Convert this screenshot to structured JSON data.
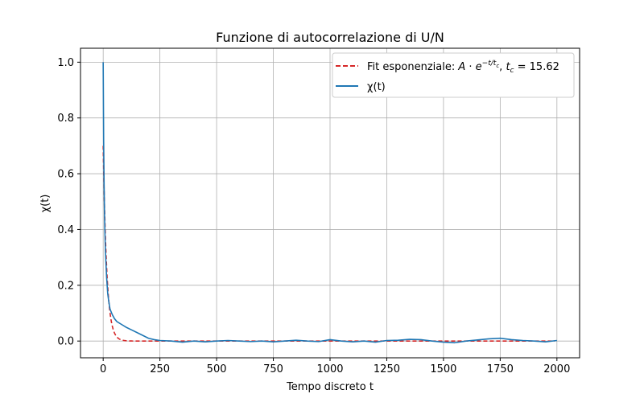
{
  "chart_data": {
    "type": "line",
    "title": "Funzione di autocorrelazione di U/N",
    "xlabel": "Tempo discreto t",
    "ylabel": "χ(t)",
    "xlim": [
      -100,
      2100
    ],
    "ylim": [
      -0.06,
      1.05
    ],
    "xticks": [
      0,
      250,
      500,
      750,
      1000,
      1250,
      1500,
      1750,
      2000
    ],
    "yticks": [
      0.0,
      0.2,
      0.4,
      0.6,
      0.8,
      1.0
    ],
    "xtick_labels": [
      "0",
      "250",
      "500",
      "750",
      "1000",
      "1250",
      "1500",
      "1750",
      "2000"
    ],
    "ytick_labels": [
      "0.0",
      "0.2",
      "0.4",
      "0.6",
      "0.8",
      "1.0"
    ],
    "grid": true,
    "legend_position": "top-right",
    "series": [
      {
        "name": "χ(t)",
        "color": "#1f77b4",
        "style": "solid",
        "x": [
          0,
          2,
          4,
          6,
          8,
          10,
          15,
          20,
          25,
          30,
          40,
          50,
          60,
          80,
          100,
          125,
          150,
          175,
          200,
          225,
          250,
          300,
          350,
          400,
          450,
          500,
          550,
          600,
          650,
          700,
          750,
          800,
          850,
          900,
          950,
          1000,
          1050,
          1100,
          1150,
          1200,
          1250,
          1300,
          1350,
          1400,
          1450,
          1500,
          1550,
          1600,
          1650,
          1700,
          1750,
          1800,
          1850,
          1900,
          1950,
          2000
        ],
        "y": [
          1.0,
          0.72,
          0.56,
          0.45,
          0.38,
          0.32,
          0.23,
          0.17,
          0.14,
          0.115,
          0.095,
          0.08,
          0.07,
          0.06,
          0.05,
          0.04,
          0.03,
          0.02,
          0.01,
          0.005,
          0.002,
          0.0,
          -0.004,
          0.0,
          -0.003,
          0.0,
          0.002,
          0.0,
          -0.002,
          0.0,
          -0.003,
          0.0,
          0.003,
          0.0,
          -0.002,
          0.005,
          0.0,
          -0.003,
          0.0,
          -0.004,
          0.002,
          0.003,
          0.006,
          0.005,
          0.0,
          -0.004,
          -0.006,
          0.0,
          0.004,
          0.008,
          0.01,
          0.005,
          0.002,
          0.0,
          -0.003,
          0.002
        ]
      },
      {
        "name": "Fit esponenziale: A · e^{-t/t_c}, t_c = 15.62",
        "color": "#d62728",
        "style": "dashed",
        "function": "exponential",
        "A": 0.7,
        "tc": 15.62,
        "x_range": [
          0,
          2000
        ]
      }
    ]
  }
}
